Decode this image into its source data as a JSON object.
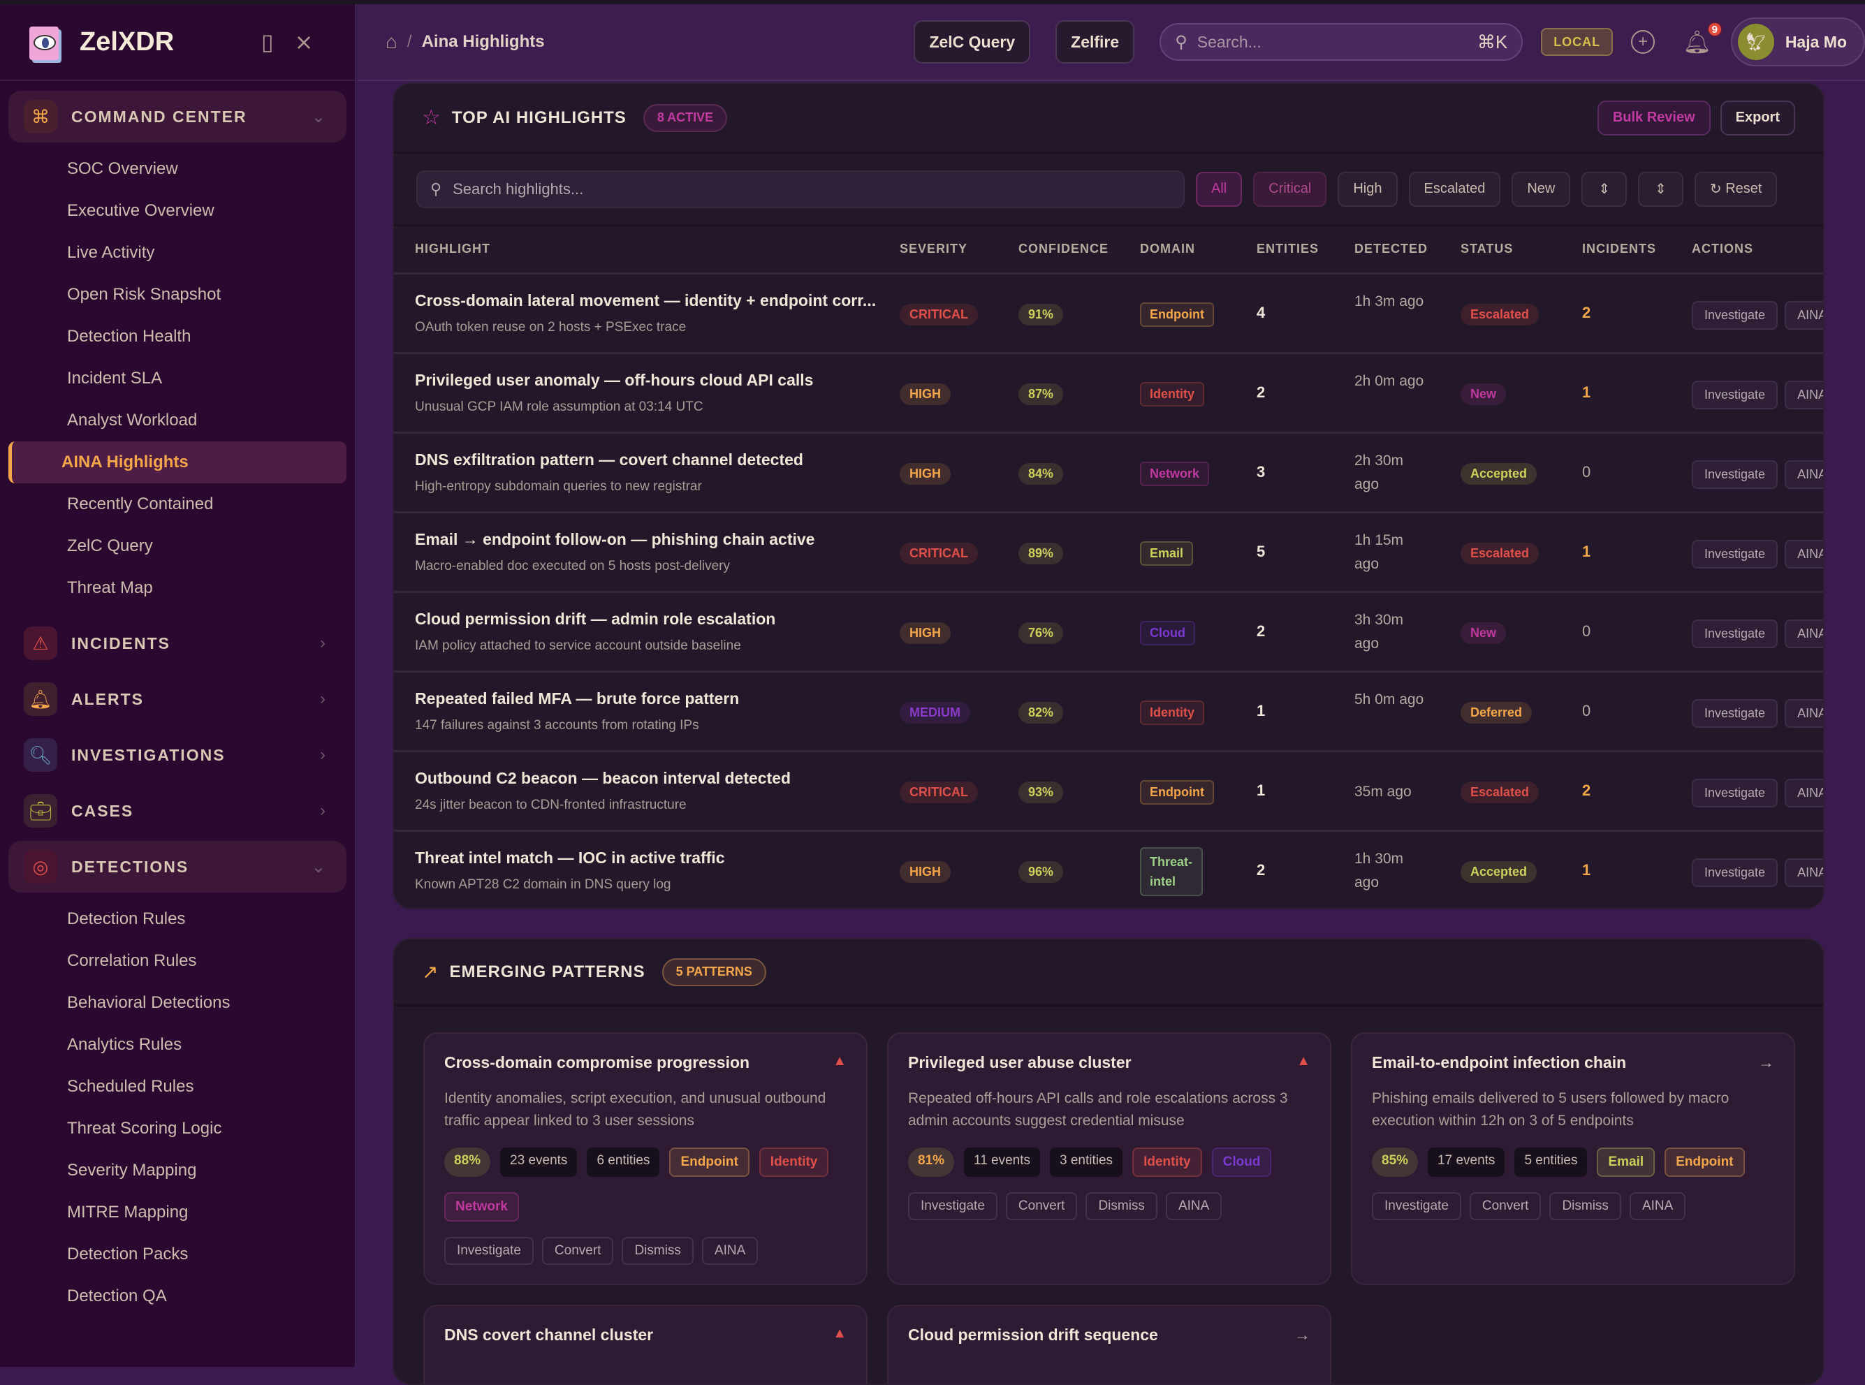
{
  "app": {
    "name": "ZelXDR"
  },
  "sidebar": {
    "groups": [
      {
        "label": "COMMAND CENTER",
        "icon": "command-icon",
        "open": true,
        "items": [
          "SOC Overview",
          "Executive Overview",
          "Live Activity",
          "Open Risk Snapshot",
          "Detection Health",
          "Incident SLA",
          "Analyst Workload",
          "AINA Highlights",
          "Recently Contained",
          "ZelC Query",
          "Threat Map"
        ],
        "active": "AINA Highlights"
      },
      {
        "label": "INCIDENTS",
        "icon": "warning-triangle-icon"
      },
      {
        "label": "ALERTS",
        "icon": "bell-icon"
      },
      {
        "label": "INVESTIGATIONS",
        "icon": "search-doc-icon"
      },
      {
        "label": "CASES",
        "icon": "briefcase-icon"
      },
      {
        "label": "DETECTIONS",
        "icon": "target-icon",
        "open": true,
        "items": [
          "Detection Rules",
          "Correlation Rules",
          "Behavioral Detections",
          "Analytics Rules",
          "Scheduled Rules",
          "Threat Scoring Logic",
          "Severity Mapping",
          "MITRE Mapping",
          "Detection Packs",
          "Detection QA"
        ]
      }
    ]
  },
  "header": {
    "breadcrumb": "Aina Highlights",
    "btn_query": "ZelC Query",
    "btn_zelfire": "Zelfire",
    "search_placeholder": "Search...",
    "search_shortcut": "⌘K",
    "env": "LOCAL",
    "notifications": "9",
    "user": "Haja Mo"
  },
  "highlights": {
    "title": "TOP AI HIGHLIGHTS",
    "count": "8 ACTIVE",
    "bulk": "Bulk Review",
    "export": "Export",
    "search_placeholder": "Search highlights...",
    "filters": [
      "All",
      "Critical",
      "High",
      "Escalated",
      "New"
    ],
    "active_filter": "All",
    "reset": "Reset",
    "columns": [
      "HIGHLIGHT",
      "SEVERITY",
      "CONFIDENCE",
      "DOMAIN",
      "ENTITIES",
      "DETECTED",
      "STATUS",
      "INCIDENTS",
      "ACTIONS"
    ],
    "rows": [
      {
        "title": "Cross-domain lateral movement — identity + endpoint corr...",
        "sub": "OAuth token reuse on 2 hosts + PSExec trace",
        "severity": "CRITICAL",
        "confidence": "91%",
        "domain": "Endpoint",
        "entities": "4",
        "detected": "1h 3m ago",
        "status": "Escalated",
        "incidents": "2"
      },
      {
        "title": "Privileged user anomaly — off-hours cloud API calls",
        "sub": "Unusual GCP IAM role assumption at 03:14 UTC",
        "severity": "HIGH",
        "confidence": "87%",
        "domain": "Identity",
        "entities": "2",
        "detected": "2h 0m ago",
        "status": "New",
        "incidents": "1"
      },
      {
        "title": "DNS exfiltration pattern — covert channel detected",
        "sub": "High-entropy subdomain queries to new registrar",
        "severity": "HIGH",
        "confidence": "84%",
        "domain": "Network",
        "entities": "3",
        "detected": "2h 30m ago",
        "status": "Accepted",
        "incidents": "0"
      },
      {
        "title": "Email → endpoint follow-on — phishing chain active",
        "sub": "Macro-enabled doc executed on 5 hosts post-delivery",
        "severity": "CRITICAL",
        "confidence": "89%",
        "domain": "Email",
        "entities": "5",
        "detected": "1h 15m ago",
        "status": "Escalated",
        "incidents": "1"
      },
      {
        "title": "Cloud permission drift — admin role escalation",
        "sub": "IAM policy attached to service account outside baseline",
        "severity": "HIGH",
        "confidence": "76%",
        "domain": "Cloud",
        "entities": "2",
        "detected": "3h 30m ago",
        "status": "New",
        "incidents": "0"
      },
      {
        "title": "Repeated failed MFA — brute force pattern",
        "sub": "147 failures against 3 accounts from rotating IPs",
        "severity": "MEDIUM",
        "confidence": "82%",
        "domain": "Identity",
        "entities": "1",
        "detected": "5h 0m ago",
        "status": "Deferred",
        "incidents": "0"
      },
      {
        "title": "Outbound C2 beacon — beacon interval detected",
        "sub": "24s jitter beacon to CDN-fronted infrastructure",
        "severity": "CRITICAL",
        "confidence": "93%",
        "domain": "Endpoint",
        "entities": "1",
        "detected": "35m ago",
        "status": "Escalated",
        "incidents": "2"
      },
      {
        "title": "Threat intel match — IOC in active traffic",
        "sub": "Known APT28 C2 domain in DNS query log",
        "severity": "HIGH",
        "confidence": "96%",
        "domain": "Threat-intel",
        "entities": "2",
        "detected": "1h 30m ago",
        "status": "Accepted",
        "incidents": "1"
      }
    ],
    "actions": [
      "Investigate",
      "AINA"
    ]
  },
  "patterns": {
    "title": "EMERGING PATTERNS",
    "count": "5 PATTERNS",
    "actions": [
      "Investigate",
      "Convert",
      "Dismiss",
      "AINA"
    ],
    "cards": [
      {
        "title": "Cross-domain compromise progression",
        "trend": "up",
        "desc": "Identity anomalies, script execution, and unusual outbound traffic appear linked to 3 user sessions",
        "confidence": "88%",
        "events": "23 events",
        "entities": "6 entities",
        "domains": [
          "Endpoint",
          "Identity",
          "Network"
        ]
      },
      {
        "title": "Privileged user abuse cluster",
        "trend": "up",
        "desc": "Repeated off-hours API calls and role escalations across 3 admin accounts suggest credential misuse",
        "confidence": "81%",
        "events": "11 events",
        "entities": "3 entities",
        "domains": [
          "Identity",
          "Cloud"
        ]
      },
      {
        "title": "Email-to-endpoint infection chain",
        "trend": "arrow",
        "desc": "Phishing emails delivered to 5 users followed by macro execution within 12h on 3 of 5 endpoints",
        "confidence": "85%",
        "events": "17 events",
        "entities": "5 entities",
        "domains": [
          "Email",
          "Endpoint"
        ]
      },
      {
        "title": "DNS covert channel cluster",
        "trend": "up"
      },
      {
        "title": "Cloud permission drift sequence",
        "trend": "arrow"
      }
    ]
  },
  "colors": {
    "accent": "#c03aa0",
    "orange": "#f3a64a",
    "severity": {
      "CRITICAL": "#e0504a",
      "HIGH": "#f3a64a",
      "MEDIUM": "#8a3ac8"
    },
    "domain": {
      "Endpoint": "#f3a64a",
      "Identity": "#e0504a",
      "Network": "#c03aa0",
      "Email": "#cdd05a",
      "Cloud": "#7a3ad0",
      "Threat-intel": "#9fd08a"
    },
    "status": {
      "Escalated": "#e0504a",
      "New": "#c03aa0",
      "Accepted": "#cdd05a",
      "Deferred": "#f3a64a"
    }
  }
}
